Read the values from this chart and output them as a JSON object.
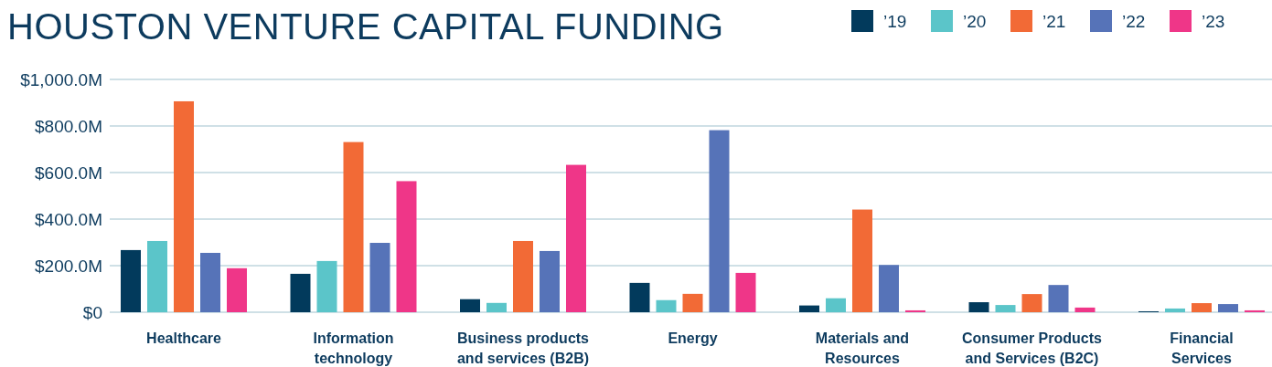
{
  "chart_data": {
    "type": "bar",
    "title": "HOUSTON VENTURE CAPITAL FUNDING",
    "categories": [
      "Healthcare",
      "Information technology",
      "Business products and services (B2B)",
      "Energy",
      "Materials and Resources",
      "Consumer Products and Services (B2C)",
      "Financial Services"
    ],
    "series": [
      {
        "name": "’19",
        "color": "#023a5c",
        "values": [
          267,
          165,
          56,
          126,
          29,
          43,
          4
        ]
      },
      {
        "name": "’20",
        "color": "#5bc5c9",
        "values": [
          306,
          220,
          40,
          52,
          60,
          31,
          16
        ]
      },
      {
        "name": "’21",
        "color": "#f26a36",
        "values": [
          906,
          731,
          306,
          79,
          441,
          78,
          39
        ]
      },
      {
        "name": "’22",
        "color": "#5673b8",
        "values": [
          255,
          298,
          263,
          782,
          203,
          117,
          35
        ]
      },
      {
        "name": "’23",
        "color": "#ef3688",
        "values": [
          189,
          563,
          633,
          169,
          8,
          20,
          8
        ]
      }
    ],
    "ylim": [
      0,
      1000
    ],
    "yticks": [
      {
        "value": 0,
        "label": "$0"
      },
      {
        "value": 200,
        "label": "$200.0M"
      },
      {
        "value": 400,
        "label": "$400.0M"
      },
      {
        "value": 600,
        "label": "$600.0M"
      },
      {
        "value": 800,
        "label": "$800.0M"
      },
      {
        "value": 1000,
        "label": "$1,000.0M"
      }
    ],
    "grid": "y",
    "legend": "top right"
  }
}
